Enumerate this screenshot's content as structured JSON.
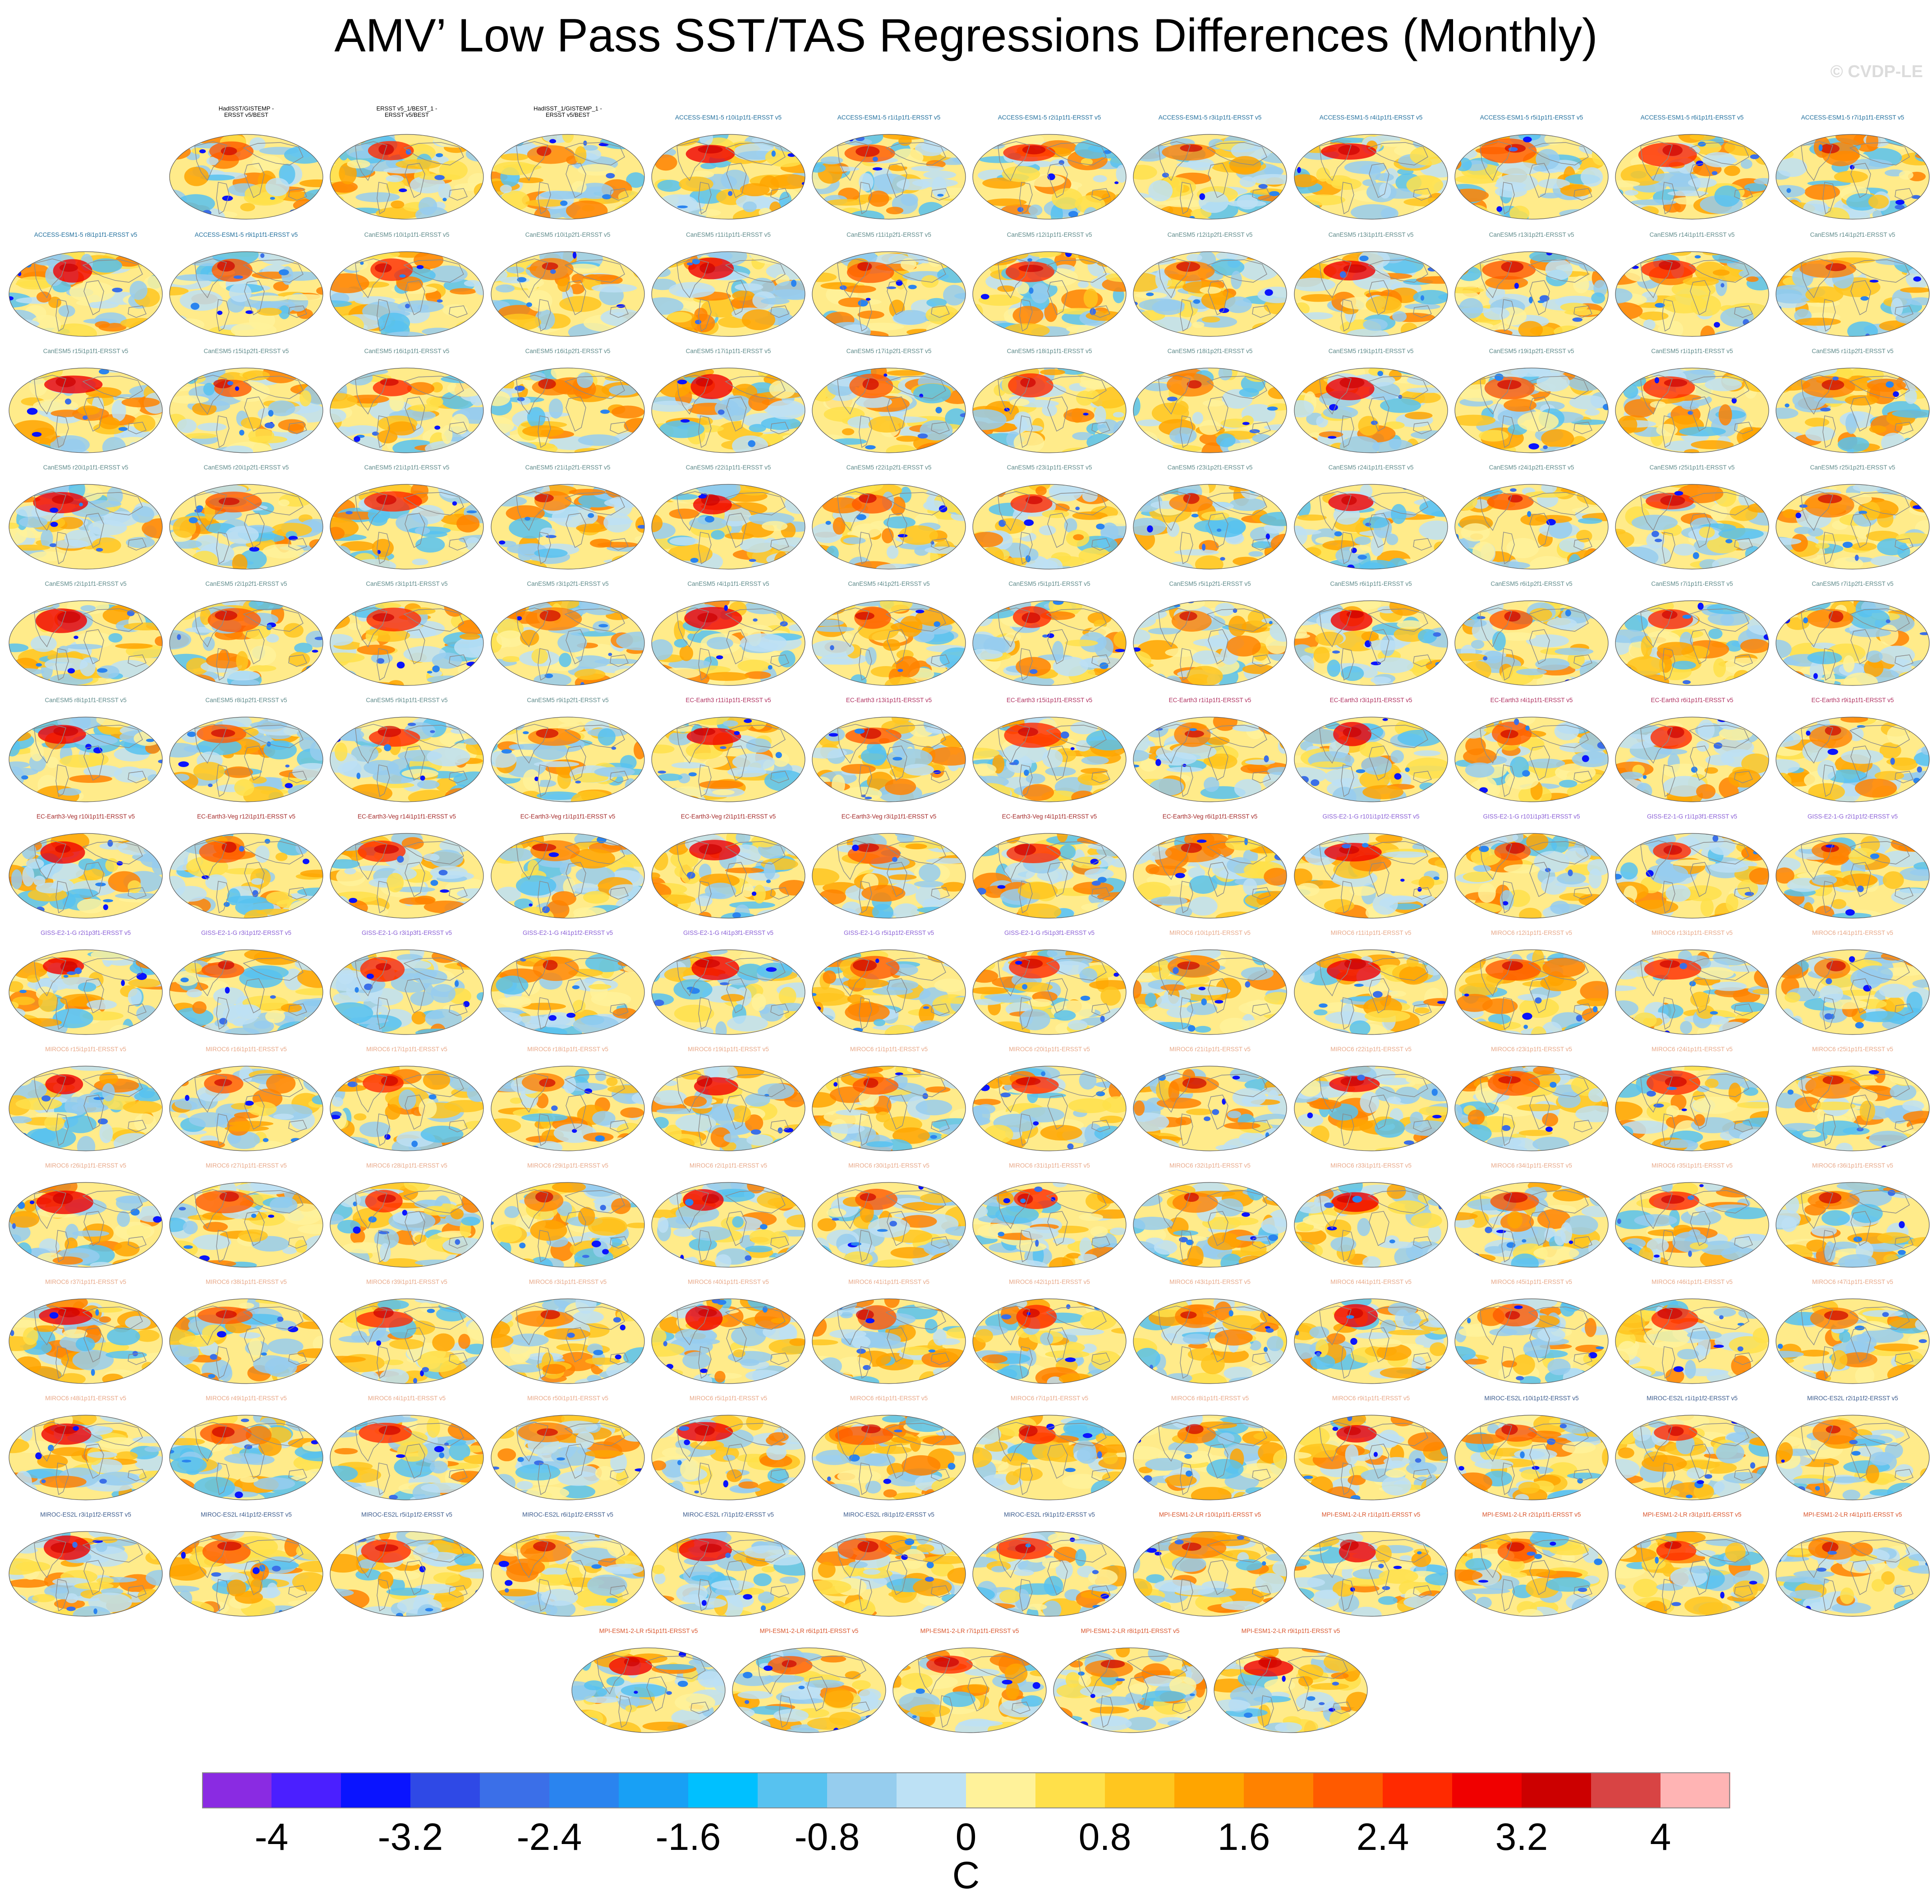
{
  "title": "AMV’ Low Pass SST/TAS Regressions Differences (Monthly)",
  "copyright": "© CVDP-LE",
  "colorbar": {
    "unit": "C",
    "tick_labels": [
      "-4",
      "-3.2",
      "-2.4",
      "-1.6",
      "-0.8",
      "0",
      "0.8",
      "1.6",
      "2.4",
      "3.2",
      "4"
    ],
    "colors": [
      "#8a2be2",
      "#4b1fff",
      "#0a14ff",
      "#2f49e6",
      "#3b6fe8",
      "#2a84ef",
      "#18a0f5",
      "#00c0ff",
      "#57c2f0",
      "#96cdee",
      "#bde1f5",
      "#fff29a",
      "#ffe04a",
      "#ffc61f",
      "#ffa500",
      "#ff8200",
      "#ff5a00",
      "#ff2a00",
      "#f00000",
      "#cc0000",
      "#d84444",
      "#ffb4b4"
    ]
  },
  "panels": [
    {
      "label": "HadISST/GISTEMP -\nERSST v5/BEST",
      "color": "#000000",
      "twoline": true
    },
    {
      "label": "ERSST v5_1/BEST_1 -\nERSST v5/BEST",
      "color": "#000000",
      "twoline": true
    },
    {
      "label": "HadISST_1/GISTEMP_1 -\nERSST v5/BEST",
      "color": "#000000",
      "twoline": true
    },
    {
      "label": "ACCESS-ESM1-5 r10i1p1f1-ERSST v5",
      "color": "#1f6e9c"
    },
    {
      "label": "ACCESS-ESM1-5 r1i1p1f1-ERSST v5",
      "color": "#1f6e9c"
    },
    {
      "label": "ACCESS-ESM1-5 r2i1p1f1-ERSST v5",
      "color": "#1f6e9c"
    },
    {
      "label": "ACCESS-ESM1-5 r3i1p1f1-ERSST v5",
      "color": "#1f6e9c"
    },
    {
      "label": "ACCESS-ESM1-5 r4i1p1f1-ERSST v5",
      "color": "#1f6e9c"
    },
    {
      "label": "ACCESS-ESM1-5 r5i1p1f1-ERSST v5",
      "color": "#1f6e9c"
    },
    {
      "label": "ACCESS-ESM1-5 r6i1p1f1-ERSST v5",
      "color": "#1f6e9c"
    },
    {
      "label": "ACCESS-ESM1-5 r7i1p1f1-ERSST v5",
      "color": "#1f6e9c"
    },
    {
      "label": "ACCESS-ESM1-5 r8i1p1f1-ERSST v5",
      "color": "#1f6e9c"
    },
    {
      "label": "ACCESS-ESM1-5 r9i1p1f1-ERSST v5",
      "color": "#1f6e9c"
    },
    {
      "label": "CanESM5 r10i1p1f1-ERSST v5",
      "color": "#5e8a8a"
    },
    {
      "label": "CanESM5 r10i1p2f1-ERSST v5",
      "color": "#5e8a8a"
    },
    {
      "label": "CanESM5 r11i1p1f1-ERSST v5",
      "color": "#5e8a8a"
    },
    {
      "label": "CanESM5 r11i1p2f1-ERSST v5",
      "color": "#5e8a8a"
    },
    {
      "label": "CanESM5 r12i1p1f1-ERSST v5",
      "color": "#5e8a8a"
    },
    {
      "label": "CanESM5 r12i1p2f1-ERSST v5",
      "color": "#5e8a8a"
    },
    {
      "label": "CanESM5 r13i1p1f1-ERSST v5",
      "color": "#5e8a8a"
    },
    {
      "label": "CanESM5 r13i1p2f1-ERSST v5",
      "color": "#5e8a8a"
    },
    {
      "label": "CanESM5 r14i1p1f1-ERSST v5",
      "color": "#5e8a8a"
    },
    {
      "label": "CanESM5 r14i1p2f1-ERSST v5",
      "color": "#5e8a8a"
    },
    {
      "label": "CanESM5 r15i1p1f1-ERSST v5",
      "color": "#5e8a8a"
    },
    {
      "label": "CanESM5 r15i1p2f1-ERSST v5",
      "color": "#5e8a8a"
    },
    {
      "label": "CanESM5 r16i1p1f1-ERSST v5",
      "color": "#5e8a8a"
    },
    {
      "label": "CanESM5 r16i1p2f1-ERSST v5",
      "color": "#5e8a8a"
    },
    {
      "label": "CanESM5 r17i1p1f1-ERSST v5",
      "color": "#5e8a8a"
    },
    {
      "label": "CanESM5 r17i1p2f1-ERSST v5",
      "color": "#5e8a8a"
    },
    {
      "label": "CanESM5 r18i1p1f1-ERSST v5",
      "color": "#5e8a8a"
    },
    {
      "label": "CanESM5 r18i1p2f1-ERSST v5",
      "color": "#5e8a8a"
    },
    {
      "label": "CanESM5 r19i1p1f1-ERSST v5",
      "color": "#5e8a8a"
    },
    {
      "label": "CanESM5 r19i1p2f1-ERSST v5",
      "color": "#5e8a8a"
    },
    {
      "label": "CanESM5 r1i1p1f1-ERSST v5",
      "color": "#5e8a8a"
    },
    {
      "label": "CanESM5 r1i1p2f1-ERSST v5",
      "color": "#5e8a8a"
    },
    {
      "label": "CanESM5 r20i1p1f1-ERSST v5",
      "color": "#5e8a8a"
    },
    {
      "label": "CanESM5 r20i1p2f1-ERSST v5",
      "color": "#5e8a8a"
    },
    {
      "label": "CanESM5 r21i1p1f1-ERSST v5",
      "color": "#5e8a8a"
    },
    {
      "label": "CanESM5 r21i1p2f1-ERSST v5",
      "color": "#5e8a8a"
    },
    {
      "label": "CanESM5 r22i1p1f1-ERSST v5",
      "color": "#5e8a8a"
    },
    {
      "label": "CanESM5 r22i1p2f1-ERSST v5",
      "color": "#5e8a8a"
    },
    {
      "label": "CanESM5 r23i1p1f1-ERSST v5",
      "color": "#5e8a8a"
    },
    {
      "label": "CanESM5 r23i1p2f1-ERSST v5",
      "color": "#5e8a8a"
    },
    {
      "label": "CanESM5 r24i1p1f1-ERSST v5",
      "color": "#5e8a8a"
    },
    {
      "label": "CanESM5 r24i1p2f1-ERSST v5",
      "color": "#5e8a8a"
    },
    {
      "label": "CanESM5 r25i1p1f1-ERSST v5",
      "color": "#5e8a8a"
    },
    {
      "label": "CanESM5 r25i1p2f1-ERSST v5",
      "color": "#5e8a8a"
    },
    {
      "label": "CanESM5 r2i1p1f1-ERSST v5",
      "color": "#5e8a8a"
    },
    {
      "label": "CanESM5 r2i1p2f1-ERSST v5",
      "color": "#5e8a8a"
    },
    {
      "label": "CanESM5 r3i1p1f1-ERSST v5",
      "color": "#5e8a8a"
    },
    {
      "label": "CanESM5 r3i1p2f1-ERSST v5",
      "color": "#5e8a8a"
    },
    {
      "label": "CanESM5 r4i1p1f1-ERSST v5",
      "color": "#5e8a8a"
    },
    {
      "label": "CanESM5 r4i1p2f1-ERSST v5",
      "color": "#5e8a8a"
    },
    {
      "label": "CanESM5 r5i1p1f1-ERSST v5",
      "color": "#5e8a8a"
    },
    {
      "label": "CanESM5 r5i1p2f1-ERSST v5",
      "color": "#5e8a8a"
    },
    {
      "label": "CanESM5 r6i1p1f1-ERSST v5",
      "color": "#5e8a8a"
    },
    {
      "label": "CanESM5 r6i1p2f1-ERSST v5",
      "color": "#5e8a8a"
    },
    {
      "label": "CanESM5 r7i1p1f1-ERSST v5",
      "color": "#5e8a8a"
    },
    {
      "label": "CanESM5 r7i1p2f1-ERSST v5",
      "color": "#5e8a8a"
    },
    {
      "label": "CanESM5 r8i1p1f1-ERSST v5",
      "color": "#5e8a8a"
    },
    {
      "label": "CanESM5 r8i1p2f1-ERSST v5",
      "color": "#5e8a8a"
    },
    {
      "label": "CanESM5 r9i1p1f1-ERSST v5",
      "color": "#5e8a8a"
    },
    {
      "label": "CanESM5 r9i1p2f1-ERSST v5",
      "color": "#5e8a8a"
    },
    {
      "label": "EC-Earth3 r11i1p1f1-ERSST v5",
      "color": "#b03060"
    },
    {
      "label": "EC-Earth3 r13i1p1f1-ERSST v5",
      "color": "#b03060"
    },
    {
      "label": "EC-Earth3 r15i1p1f1-ERSST v5",
      "color": "#b03060"
    },
    {
      "label": "EC-Earth3 r1i1p1f1-ERSST v5",
      "color": "#b03060"
    },
    {
      "label": "EC-Earth3 r3i1p1f1-ERSST v5",
      "color": "#b03060"
    },
    {
      "label": "EC-Earth3 r4i1p1f1-ERSST v5",
      "color": "#b03060"
    },
    {
      "label": "EC-Earth3 r6i1p1f1-ERSST v5",
      "color": "#b03060"
    },
    {
      "label": "EC-Earth3 r9i1p1f1-ERSST v5",
      "color": "#b03060"
    },
    {
      "label": "EC-Earth3-Veg r10i1p1f1-ERSST v5",
      "color": "#a52a2a"
    },
    {
      "label": "EC-Earth3-Veg r12i1p1f1-ERSST v5",
      "color": "#a52a2a"
    },
    {
      "label": "EC-Earth3-Veg r14i1p1f1-ERSST v5",
      "color": "#a52a2a"
    },
    {
      "label": "EC-Earth3-Veg r1i1p1f1-ERSST v5",
      "color": "#a52a2a"
    },
    {
      "label": "EC-Earth3-Veg r2i1p1f1-ERSST v5",
      "color": "#a52a2a"
    },
    {
      "label": "EC-Earth3-Veg r3i1p1f1-ERSST v5",
      "color": "#a52a2a"
    },
    {
      "label": "EC-Earth3-Veg r4i1p1f1-ERSST v5",
      "color": "#a52a2a"
    },
    {
      "label": "EC-Earth3-Veg r6i1p1f1-ERSST v5",
      "color": "#a52a2a"
    },
    {
      "label": "GISS-E2-1-G r101i1p1f2-ERSST v5",
      "color": "#8a5fd6"
    },
    {
      "label": "GISS-E2-1-G r101i1p3f1-ERSST v5",
      "color": "#8a5fd6"
    },
    {
      "label": "GISS-E2-1-G r1i1p3f1-ERSST v5",
      "color": "#8a5fd6"
    },
    {
      "label": "GISS-E2-1-G r2i1p1f2-ERSST v5",
      "color": "#8a5fd6"
    },
    {
      "label": "GISS-E2-1-G r2i1p3f1-ERSST v5",
      "color": "#8a5fd6"
    },
    {
      "label": "GISS-E2-1-G r3i1p1f2-ERSST v5",
      "color": "#8a5fd6"
    },
    {
      "label": "GISS-E2-1-G r3i1p3f1-ERSST v5",
      "color": "#8a5fd6"
    },
    {
      "label": "GISS-E2-1-G r4i1p1f2-ERSST v5",
      "color": "#8a5fd6"
    },
    {
      "label": "GISS-E2-1-G r4i1p3f1-ERSST v5",
      "color": "#8a5fd6"
    },
    {
      "label": "GISS-E2-1-G r5i1p1f2-ERSST v5",
      "color": "#8a5fd6"
    },
    {
      "label": "GISS-E2-1-G r5i1p3f1-ERSST v5",
      "color": "#8a5fd6"
    },
    {
      "label": "MIROC6 r10i1p1f1-ERSST v5",
      "color": "#e8a888"
    },
    {
      "label": "MIROC6 r11i1p1f1-ERSST v5",
      "color": "#e8a888"
    },
    {
      "label": "MIROC6 r12i1p1f1-ERSST v5",
      "color": "#e8a888"
    },
    {
      "label": "MIROC6 r13i1p1f1-ERSST v5",
      "color": "#e8a888"
    },
    {
      "label": "MIROC6 r14i1p1f1-ERSST v5",
      "color": "#e8a888"
    },
    {
      "label": "MIROC6 r15i1p1f1-ERSST v5",
      "color": "#e8a888"
    },
    {
      "label": "MIROC6 r16i1p1f1-ERSST v5",
      "color": "#e8a888"
    },
    {
      "label": "MIROC6 r17i1p1f1-ERSST v5",
      "color": "#e8a888"
    },
    {
      "label": "MIROC6 r18i1p1f1-ERSST v5",
      "color": "#e8a888"
    },
    {
      "label": "MIROC6 r19i1p1f1-ERSST v5",
      "color": "#e8a888"
    },
    {
      "label": "MIROC6 r1i1p1f1-ERSST v5",
      "color": "#e8a888"
    },
    {
      "label": "MIROC6 r20i1p1f1-ERSST v5",
      "color": "#e8a888"
    },
    {
      "label": "MIROC6 r21i1p1f1-ERSST v5",
      "color": "#e8a888"
    },
    {
      "label": "MIROC6 r22i1p1f1-ERSST v5",
      "color": "#e8a888"
    },
    {
      "label": "MIROC6 r23i1p1f1-ERSST v5",
      "color": "#e8a888"
    },
    {
      "label": "MIROC6 r24i1p1f1-ERSST v5",
      "color": "#e8a888"
    },
    {
      "label": "MIROC6 r25i1p1f1-ERSST v5",
      "color": "#e8a888"
    },
    {
      "label": "MIROC6 r26i1p1f1-ERSST v5",
      "color": "#e8a888"
    },
    {
      "label": "MIROC6 r27i1p1f1-ERSST v5",
      "color": "#e8a888"
    },
    {
      "label": "MIROC6 r28i1p1f1-ERSST v5",
      "color": "#e8a888"
    },
    {
      "label": "MIROC6 r29i1p1f1-ERSST v5",
      "color": "#e8a888"
    },
    {
      "label": "MIROC6 r2i1p1f1-ERSST v5",
      "color": "#e8a888"
    },
    {
      "label": "MIROC6 r30i1p1f1-ERSST v5",
      "color": "#e8a888"
    },
    {
      "label": "MIROC6 r31i1p1f1-ERSST v5",
      "color": "#e8a888"
    },
    {
      "label": "MIROC6 r32i1p1f1-ERSST v5",
      "color": "#e8a888"
    },
    {
      "label": "MIROC6 r33i1p1f1-ERSST v5",
      "color": "#e8a888"
    },
    {
      "label": "MIROC6 r34i1p1f1-ERSST v5",
      "color": "#e8a888"
    },
    {
      "label": "MIROC6 r35i1p1f1-ERSST v5",
      "color": "#e8a888"
    },
    {
      "label": "MIROC6 r36i1p1f1-ERSST v5",
      "color": "#e8a888"
    },
    {
      "label": "MIROC6 r37i1p1f1-ERSST v5",
      "color": "#e8a888"
    },
    {
      "label": "MIROC6 r38i1p1f1-ERSST v5",
      "color": "#e8a888"
    },
    {
      "label": "MIROC6 r39i1p1f1-ERSST v5",
      "color": "#e8a888"
    },
    {
      "label": "MIROC6 r3i1p1f1-ERSST v5",
      "color": "#e8a888"
    },
    {
      "label": "MIROC6 r40i1p1f1-ERSST v5",
      "color": "#e8a888"
    },
    {
      "label": "MIROC6 r41i1p1f1-ERSST v5",
      "color": "#e8a888"
    },
    {
      "label": "MIROC6 r42i1p1f1-ERSST v5",
      "color": "#e8a888"
    },
    {
      "label": "MIROC6 r43i1p1f1-ERSST v5",
      "color": "#e8a888"
    },
    {
      "label": "MIROC6 r44i1p1f1-ERSST v5",
      "color": "#e8a888"
    },
    {
      "label": "MIROC6 r45i1p1f1-ERSST v5",
      "color": "#e8a888"
    },
    {
      "label": "MIROC6 r46i1p1f1-ERSST v5",
      "color": "#e8a888"
    },
    {
      "label": "MIROC6 r47i1p1f1-ERSST v5",
      "color": "#e8a888"
    },
    {
      "label": "MIROC6 r48i1p1f1-ERSST v5",
      "color": "#e8a888"
    },
    {
      "label": "MIROC6 r49i1p1f1-ERSST v5",
      "color": "#e8a888"
    },
    {
      "label": "MIROC6 r4i1p1f1-ERSST v5",
      "color": "#e8a888"
    },
    {
      "label": "MIROC6 r50i1p1f1-ERSST v5",
      "color": "#e8a888"
    },
    {
      "label": "MIROC6 r5i1p1f1-ERSST v5",
      "color": "#e8a888"
    },
    {
      "label": "MIROC6 r6i1p1f1-ERSST v5",
      "color": "#e8a888"
    },
    {
      "label": "MIROC6 r7i1p1f1-ERSST v5",
      "color": "#e8a888"
    },
    {
      "label": "MIROC6 r8i1p1f1-ERSST v5",
      "color": "#e8a888"
    },
    {
      "label": "MIROC6 r9i1p1f1-ERSST v5",
      "color": "#e8a888"
    },
    {
      "label": "MIROC-ES2L r10i1p1f2-ERSST v5",
      "color": "#3a5a8c"
    },
    {
      "label": "MIROC-ES2L r1i1p1f2-ERSST v5",
      "color": "#3a5a8c"
    },
    {
      "label": "MIROC-ES2L r2i1p1f2-ERSST v5",
      "color": "#3a5a8c"
    },
    {
      "label": "MIROC-ES2L r3i1p1f2-ERSST v5",
      "color": "#3a5a8c"
    },
    {
      "label": "MIROC-ES2L r4i1p1f2-ERSST v5",
      "color": "#3a5a8c"
    },
    {
      "label": "MIROC-ES2L r5i1p1f2-ERSST v5",
      "color": "#3a5a8c"
    },
    {
      "label": "MIROC-ES2L r6i1p1f2-ERSST v5",
      "color": "#3a5a8c"
    },
    {
      "label": "MIROC-ES2L r7i1p1f2-ERSST v5",
      "color": "#3a5a8c"
    },
    {
      "label": "MIROC-ES2L r8i1p1f2-ERSST v5",
      "color": "#3a5a8c"
    },
    {
      "label": "MIROC-ES2L r9i1p1f2-ERSST v5",
      "color": "#3a5a8c"
    },
    {
      "label": "MPI-ESM1-2-LR r10i1p1f1-ERSST v5",
      "color": "#d9542b"
    },
    {
      "label": "MPI-ESM1-2-LR r1i1p1f1-ERSST v5",
      "color": "#d9542b"
    },
    {
      "label": "MPI-ESM1-2-LR r2i1p1f1-ERSST v5",
      "color": "#d9542b"
    },
    {
      "label": "MPI-ESM1-2-LR r3i1p1f1-ERSST v5",
      "color": "#d9542b"
    },
    {
      "label": "MPI-ESM1-2-LR r4i1p1f1-ERSST v5",
      "color": "#d9542b"
    },
    {
      "label": "MPI-ESM1-2-LR r5i1p1f1-ERSST v5",
      "color": "#d9542b"
    },
    {
      "label": "MPI-ESM1-2-LR r6i1p1f1-ERSST v5",
      "color": "#d9542b"
    },
    {
      "label": "MPI-ESM1-2-LR r7i1p1f1-ERSST v5",
      "color": "#d9542b"
    },
    {
      "label": "MPI-ESM1-2-LR r8i1p1f1-ERSST v5",
      "color": "#d9542b"
    },
    {
      "label": "MPI-ESM1-2-LR r9i1p1f1-ERSST v5",
      "color": "#d9542b"
    }
  ]
}
